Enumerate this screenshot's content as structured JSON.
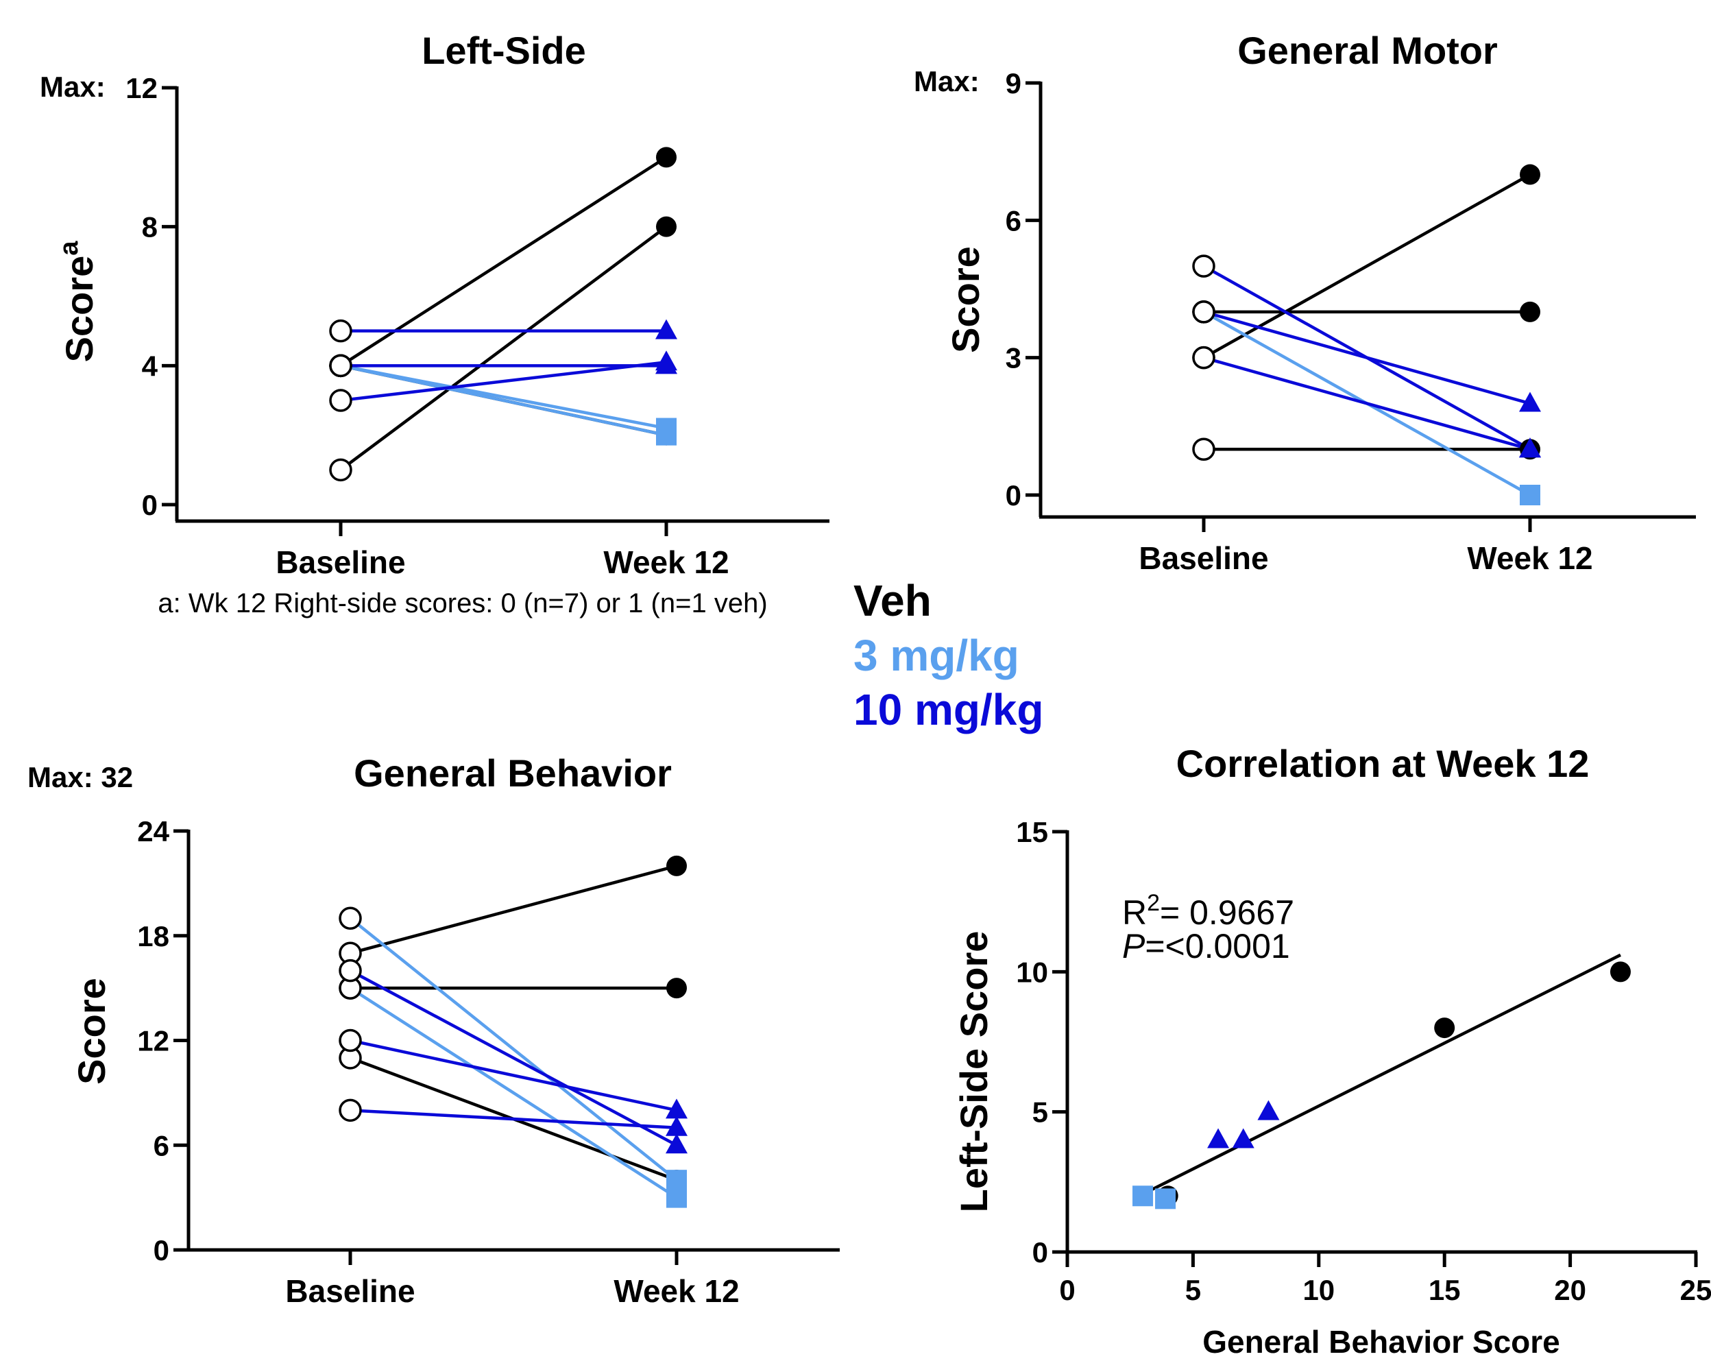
{
  "legend": {
    "items": [
      {
        "label": "Veh",
        "color": "#000000"
      },
      {
        "label": "3 mg/kg",
        "color": "#5aa0ee"
      },
      {
        "label": "10 mg/kg",
        "color": "#0a0ad8"
      }
    ]
  },
  "colors": {
    "veh": "#000000",
    "low": "#5aa0ee",
    "high": "#0a0ad8",
    "axis": "#000000"
  },
  "chart_data": [
    {
      "id": "left_side",
      "type": "line",
      "title": "Left-Side",
      "ylabel": "Score",
      "ylabel_superscript": "a",
      "max_label": "Max:",
      "max_value": "12",
      "categories": [
        "Baseline",
        "Week 12"
      ],
      "ylim": [
        0,
        12
      ],
      "yticks": [
        0,
        4,
        8,
        12
      ],
      "footnote": "a: Wk 12 Right-side scores: 0 (n=7) or 1 (n=1 veh)",
      "series": [
        {
          "group": "veh",
          "values": [
            4,
            10
          ]
        },
        {
          "group": "veh",
          "values": [
            1,
            8
          ]
        },
        {
          "group": "veh",
          "values": [
            4,
            2
          ]
        },
        {
          "group": "low",
          "values": [
            4,
            2
          ]
        },
        {
          "group": "low",
          "values": [
            4,
            2.2
          ]
        },
        {
          "group": "high",
          "values": [
            5,
            5
          ]
        },
        {
          "group": "high",
          "values": [
            4,
            4
          ]
        },
        {
          "group": "high",
          "values": [
            3,
            4.1
          ]
        }
      ]
    },
    {
      "id": "general_motor",
      "type": "line",
      "title": "General  Motor",
      "ylabel": "Score",
      "max_label": "Max:",
      "max_value": "9",
      "categories": [
        "Baseline",
        "Week 12"
      ],
      "ylim": [
        0,
        9
      ],
      "yticks": [
        0,
        3,
        6,
        9
      ],
      "series": [
        {
          "group": "veh",
          "values": [
            3,
            7
          ]
        },
        {
          "group": "veh",
          "values": [
            4,
            4
          ]
        },
        {
          "group": "veh",
          "values": [
            1,
            1
          ]
        },
        {
          "group": "low",
          "values": [
            4,
            0
          ]
        },
        {
          "group": "high",
          "values": [
            5,
            1
          ]
        },
        {
          "group": "high",
          "values": [
            4,
            2
          ]
        },
        {
          "group": "high",
          "values": [
            3,
            1
          ]
        }
      ]
    },
    {
      "id": "general_behavior",
      "type": "line",
      "title": "General  Behavior",
      "ylabel": "Score",
      "max_label": "Max: 32",
      "categories": [
        "Baseline",
        "Week 12"
      ],
      "ylim": [
        0,
        24
      ],
      "yticks": [
        0,
        6,
        12,
        18,
        24
      ],
      "series": [
        {
          "group": "veh",
          "values": [
            17,
            22
          ]
        },
        {
          "group": "veh",
          "values": [
            15,
            15
          ]
        },
        {
          "group": "veh",
          "values": [
            11,
            4
          ]
        },
        {
          "group": "low",
          "values": [
            19,
            4
          ]
        },
        {
          "group": "low",
          "values": [
            15,
            3
          ]
        },
        {
          "group": "high",
          "values": [
            16,
            6
          ]
        },
        {
          "group": "high",
          "values": [
            12,
            8
          ]
        },
        {
          "group": "high",
          "values": [
            8,
            7
          ]
        }
      ]
    },
    {
      "id": "correlation",
      "type": "scatter",
      "title": "Correlation at Week 12",
      "xlabel": "General Behavior Score",
      "ylabel": "Left-Side Score",
      "xlim": [
        0,
        25
      ],
      "ylim": [
        0,
        15
      ],
      "xticks": [
        0,
        5,
        10,
        15,
        20,
        25
      ],
      "yticks": [
        0,
        5,
        10,
        15
      ],
      "r2_label": "R",
      "r2_sup": "2",
      "r2_value": "= 0.9667",
      "p_label": "P",
      "p_value": "=<0.0001",
      "fit_line": {
        "x": [
          3.3,
          22
        ],
        "y": [
          2.2,
          10.6
        ]
      },
      "points": [
        {
          "group": "veh",
          "x": 22,
          "y": 10
        },
        {
          "group": "veh",
          "x": 15,
          "y": 8
        },
        {
          "group": "veh",
          "x": 4,
          "y": 2
        },
        {
          "group": "low",
          "x": 3,
          "y": 2
        },
        {
          "group": "low",
          "x": 3.9,
          "y": 1.9
        },
        {
          "group": "high",
          "x": 8,
          "y": 5
        },
        {
          "group": "high",
          "x": 7,
          "y": 4
        },
        {
          "group": "high",
          "x": 6,
          "y": 4
        }
      ]
    }
  ]
}
